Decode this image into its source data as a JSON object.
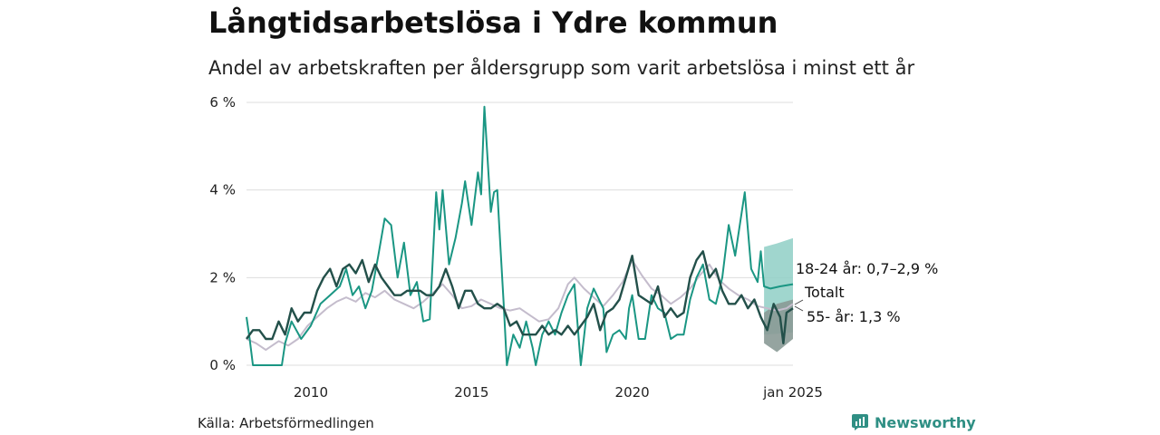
{
  "header": {
    "title": "Långtidsarbetslösa i Ydre kommun",
    "subtitle": "Andel av arbetskraften per åldersgrupp som varit arbetslösa i minst ett år"
  },
  "footer": {
    "source": "Källa: Arbetsförmedlingen",
    "brand": "Newsworthy"
  },
  "colors": {
    "youth": "#1a9683",
    "total": "#c4bccc",
    "senior": "#23504a",
    "band_youth": "#8fcfc6",
    "band_senior": "#8a9a96",
    "grid": "#dddddd"
  },
  "chart_data": {
    "type": "line",
    "title": "Långtidsarbetslösa i Ydre kommun",
    "subtitle": "Andel av arbetskraften per åldersgrupp som varit arbetslösa i minst ett år",
    "xlabel": "",
    "ylabel": "",
    "xlim": [
      2008.0,
      2025.0
    ],
    "ylim": [
      0,
      6
    ],
    "y_ticks": [
      0,
      2,
      4,
      6
    ],
    "y_tick_labels": [
      "0 %",
      "2 %",
      "4 %",
      "6 %"
    ],
    "x_ticks": [
      2010,
      2015,
      2020,
      2025
    ],
    "x_tick_labels": [
      "2010",
      "2015",
      "2020",
      "jan 2025"
    ],
    "grid": true,
    "series": [
      {
        "name": "Totalt",
        "key": "total",
        "end_label": "Totalt",
        "points": [
          [
            2008.0,
            0.6
          ],
          [
            2008.3,
            0.5
          ],
          [
            2008.6,
            0.35
          ],
          [
            2009.0,
            0.55
          ],
          [
            2009.3,
            0.45
          ],
          [
            2009.6,
            0.6
          ],
          [
            2009.9,
            0.9
          ],
          [
            2010.2,
            1.1
          ],
          [
            2010.5,
            1.3
          ],
          [
            2010.8,
            1.45
          ],
          [
            2011.1,
            1.55
          ],
          [
            2011.4,
            1.45
          ],
          [
            2011.7,
            1.65
          ],
          [
            2012.0,
            1.55
          ],
          [
            2012.3,
            1.7
          ],
          [
            2012.6,
            1.5
          ],
          [
            2012.9,
            1.4
          ],
          [
            2013.2,
            1.3
          ],
          [
            2013.5,
            1.45
          ],
          [
            2013.8,
            1.65
          ],
          [
            2014.1,
            1.85
          ],
          [
            2014.4,
            1.6
          ],
          [
            2014.7,
            1.3
          ],
          [
            2015.0,
            1.35
          ],
          [
            2015.3,
            1.5
          ],
          [
            2015.6,
            1.4
          ],
          [
            2015.9,
            1.3
          ],
          [
            2016.2,
            1.25
          ],
          [
            2016.5,
            1.3
          ],
          [
            2016.8,
            1.15
          ],
          [
            2017.1,
            1.0
          ],
          [
            2017.4,
            1.05
          ],
          [
            2017.7,
            1.3
          ],
          [
            2018.0,
            1.85
          ],
          [
            2018.2,
            2.0
          ],
          [
            2018.5,
            1.75
          ],
          [
            2018.8,
            1.55
          ],
          [
            2019.1,
            1.35
          ],
          [
            2019.4,
            1.6
          ],
          [
            2019.7,
            1.9
          ],
          [
            2020.0,
            2.4
          ],
          [
            2020.3,
            2.05
          ],
          [
            2020.6,
            1.75
          ],
          [
            2020.9,
            1.6
          ],
          [
            2021.2,
            1.4
          ],
          [
            2021.5,
            1.55
          ],
          [
            2021.8,
            1.75
          ],
          [
            2022.1,
            2.05
          ],
          [
            2022.4,
            2.3
          ],
          [
            2022.7,
            1.95
          ],
          [
            2023.0,
            1.75
          ],
          [
            2023.3,
            1.6
          ],
          [
            2023.6,
            1.5
          ],
          [
            2023.9,
            1.35
          ],
          [
            2024.2,
            1.3
          ],
          [
            2024.5,
            1.25
          ],
          [
            2024.8,
            1.3
          ],
          [
            2025.0,
            1.4
          ]
        ]
      },
      {
        "name": "18-24 år",
        "key": "youth",
        "end_label": "18-24 år: 0,7–2,9 %",
        "points": [
          [
            2008.0,
            1.1
          ],
          [
            2008.1,
            0.6
          ],
          [
            2008.2,
            0.0
          ],
          [
            2009.1,
            0.0
          ],
          [
            2009.2,
            0.5
          ],
          [
            2009.4,
            1.0
          ],
          [
            2009.7,
            0.6
          ],
          [
            2010.0,
            0.9
          ],
          [
            2010.3,
            1.4
          ],
          [
            2010.6,
            1.6
          ],
          [
            2010.9,
            1.8
          ],
          [
            2011.1,
            2.2
          ],
          [
            2011.3,
            1.6
          ],
          [
            2011.5,
            1.8
          ],
          [
            2011.7,
            1.3
          ],
          [
            2011.9,
            1.7
          ],
          [
            2012.1,
            2.5
          ],
          [
            2012.3,
            3.35
          ],
          [
            2012.5,
            3.2
          ],
          [
            2012.7,
            2.0
          ],
          [
            2012.9,
            2.8
          ],
          [
            2013.1,
            1.6
          ],
          [
            2013.3,
            1.9
          ],
          [
            2013.5,
            1.0
          ],
          [
            2013.7,
            1.05
          ],
          [
            2013.9,
            3.95
          ],
          [
            2014.0,
            3.1
          ],
          [
            2014.1,
            4.0
          ],
          [
            2014.3,
            2.3
          ],
          [
            2014.5,
            2.9
          ],
          [
            2014.7,
            3.7
          ],
          [
            2014.8,
            4.2
          ],
          [
            2015.0,
            3.2
          ],
          [
            2015.2,
            4.4
          ],
          [
            2015.3,
            3.9
          ],
          [
            2015.4,
            5.9
          ],
          [
            2015.6,
            3.5
          ],
          [
            2015.7,
            3.95
          ],
          [
            2015.8,
            4.0
          ],
          [
            2015.9,
            2.7
          ],
          [
            2016.0,
            1.4
          ],
          [
            2016.1,
            0.0
          ],
          [
            2016.3,
            0.7
          ],
          [
            2016.5,
            0.4
          ],
          [
            2016.7,
            1.0
          ],
          [
            2016.9,
            0.4
          ],
          [
            2017.0,
            0.0
          ],
          [
            2017.2,
            0.7
          ],
          [
            2017.4,
            1.0
          ],
          [
            2017.6,
            0.7
          ],
          [
            2017.8,
            1.2
          ],
          [
            2018.0,
            1.6
          ],
          [
            2018.2,
            1.85
          ],
          [
            2018.4,
            0.0
          ],
          [
            2018.6,
            1.3
          ],
          [
            2018.8,
            1.75
          ],
          [
            2018.9,
            1.6
          ],
          [
            2019.1,
            1.3
          ],
          [
            2019.2,
            0.3
          ],
          [
            2019.4,
            0.7
          ],
          [
            2019.6,
            0.8
          ],
          [
            2019.8,
            0.6
          ],
          [
            2019.9,
            1.3
          ],
          [
            2020.0,
            1.6
          ],
          [
            2020.2,
            0.6
          ],
          [
            2020.4,
            0.6
          ],
          [
            2020.6,
            1.6
          ],
          [
            2020.8,
            1.3
          ],
          [
            2021.0,
            1.2
          ],
          [
            2021.2,
            0.6
          ],
          [
            2021.4,
            0.7
          ],
          [
            2021.6,
            0.7
          ],
          [
            2021.8,
            1.5
          ],
          [
            2022.0,
            2.0
          ],
          [
            2022.2,
            2.3
          ],
          [
            2022.4,
            1.5
          ],
          [
            2022.6,
            1.4
          ],
          [
            2022.8,
            2.0
          ],
          [
            2023.0,
            3.2
          ],
          [
            2023.2,
            2.5
          ],
          [
            2023.5,
            3.95
          ],
          [
            2023.7,
            2.2
          ],
          [
            2023.9,
            1.9
          ],
          [
            2024.0,
            2.6
          ],
          [
            2024.1,
            1.8
          ],
          [
            2024.3,
            1.75
          ],
          [
            2024.6,
            1.8
          ],
          [
            2025.0,
            1.85
          ]
        ],
        "band": [
          [
            2024.1,
            0.7,
            2.7
          ],
          [
            2024.5,
            0.72,
            2.78
          ],
          [
            2025.0,
            0.75,
            2.9
          ]
        ]
      },
      {
        "name": "55- år",
        "key": "senior",
        "end_label": "55- år: 1,3 %",
        "points": [
          [
            2008.0,
            0.6
          ],
          [
            2008.2,
            0.8
          ],
          [
            2008.4,
            0.8
          ],
          [
            2008.6,
            0.6
          ],
          [
            2008.8,
            0.6
          ],
          [
            2009.0,
            1.0
          ],
          [
            2009.2,
            0.7
          ],
          [
            2009.4,
            1.3
          ],
          [
            2009.6,
            1.0
          ],
          [
            2009.8,
            1.2
          ],
          [
            2010.0,
            1.2
          ],
          [
            2010.2,
            1.7
          ],
          [
            2010.4,
            2.0
          ],
          [
            2010.6,
            2.2
          ],
          [
            2010.8,
            1.8
          ],
          [
            2011.0,
            2.2
          ],
          [
            2011.2,
            2.3
          ],
          [
            2011.4,
            2.1
          ],
          [
            2011.6,
            2.4
          ],
          [
            2011.8,
            1.9
          ],
          [
            2012.0,
            2.3
          ],
          [
            2012.2,
            2.0
          ],
          [
            2012.4,
            1.8
          ],
          [
            2012.6,
            1.6
          ],
          [
            2012.8,
            1.6
          ],
          [
            2013.0,
            1.7
          ],
          [
            2013.2,
            1.7
          ],
          [
            2013.4,
            1.7
          ],
          [
            2013.6,
            1.6
          ],
          [
            2013.8,
            1.6
          ],
          [
            2014.0,
            1.8
          ],
          [
            2014.2,
            2.2
          ],
          [
            2014.4,
            1.8
          ],
          [
            2014.6,
            1.3
          ],
          [
            2014.8,
            1.7
          ],
          [
            2015.0,
            1.7
          ],
          [
            2015.2,
            1.4
          ],
          [
            2015.4,
            1.3
          ],
          [
            2015.6,
            1.3
          ],
          [
            2015.8,
            1.4
          ],
          [
            2016.0,
            1.3
          ],
          [
            2016.2,
            0.9
          ],
          [
            2016.4,
            1.0
          ],
          [
            2016.6,
            0.7
          ],
          [
            2016.8,
            0.7
          ],
          [
            2017.0,
            0.7
          ],
          [
            2017.2,
            0.9
          ],
          [
            2017.4,
            0.7
          ],
          [
            2017.6,
            0.8
          ],
          [
            2017.8,
            0.7
          ],
          [
            2018.0,
            0.9
          ],
          [
            2018.2,
            0.7
          ],
          [
            2018.4,
            0.9
          ],
          [
            2018.6,
            1.1
          ],
          [
            2018.8,
            1.4
          ],
          [
            2019.0,
            0.8
          ],
          [
            2019.2,
            1.2
          ],
          [
            2019.4,
            1.3
          ],
          [
            2019.6,
            1.5
          ],
          [
            2019.8,
            2.0
          ],
          [
            2020.0,
            2.5
          ],
          [
            2020.2,
            1.6
          ],
          [
            2020.4,
            1.5
          ],
          [
            2020.6,
            1.4
          ],
          [
            2020.8,
            1.8
          ],
          [
            2021.0,
            1.1
          ],
          [
            2021.2,
            1.3
          ],
          [
            2021.4,
            1.1
          ],
          [
            2021.6,
            1.2
          ],
          [
            2021.8,
            2.0
          ],
          [
            2022.0,
            2.4
          ],
          [
            2022.2,
            2.6
          ],
          [
            2022.4,
            2.0
          ],
          [
            2022.6,
            2.2
          ],
          [
            2022.8,
            1.7
          ],
          [
            2023.0,
            1.4
          ],
          [
            2023.2,
            1.4
          ],
          [
            2023.4,
            1.6
          ],
          [
            2023.6,
            1.3
          ],
          [
            2023.8,
            1.5
          ],
          [
            2024.0,
            1.1
          ],
          [
            2024.2,
            0.8
          ],
          [
            2024.4,
            1.4
          ],
          [
            2024.6,
            1.1
          ],
          [
            2024.7,
            0.5
          ],
          [
            2024.8,
            1.2
          ],
          [
            2025.0,
            1.3
          ]
        ],
        "band": [
          [
            2024.1,
            0.5,
            1.2
          ],
          [
            2024.5,
            0.3,
            1.4
          ],
          [
            2025.0,
            0.6,
            1.5
          ]
        ]
      }
    ]
  }
}
